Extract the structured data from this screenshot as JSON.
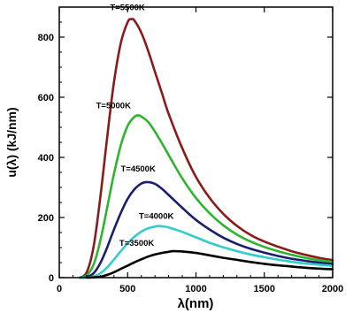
{
  "chart_data": {
    "type": "line",
    "title": "",
    "xlabel": "λ(nm)",
    "ylabel": "u(λ) (kJ/nm)",
    "xlim": [
      0,
      2000
    ],
    "ylim": [
      0,
      900
    ],
    "x_ticks": [
      0,
      500,
      1000,
      1500,
      2000
    ],
    "y_ticks": [
      0,
      200,
      400,
      600,
      800
    ],
    "x_tick_labels": [
      "0",
      "500",
      "1000",
      "1500",
      "2000"
    ],
    "y_tick_labels": [
      "0",
      "200",
      "400",
      "600",
      "800"
    ],
    "grid": false,
    "legend": "none",
    "series": [
      {
        "name": "T=5500K",
        "temperature_k": 5500,
        "peak": [
          527,
          860
        ],
        "color": "#8b1a1a",
        "x": [
          150,
          200,
          250,
          300,
          350,
          400,
          450,
          500,
          527,
          550,
          600,
          650,
          700,
          750,
          800,
          900,
          1000,
          1100,
          1200,
          1300,
          1400,
          1500,
          1600,
          1700,
          1800,
          1900,
          2000
        ],
        "values": [
          0,
          17,
          100,
          265,
          465,
          650,
          780,
          850,
          860,
          855,
          815,
          755,
          685,
          615,
          545,
          430,
          335,
          265,
          212,
          172,
          142,
          120,
          103,
          88,
          76,
          66,
          58
        ]
      },
      {
        "name": "T=5000K",
        "temperature_k": 5000,
        "peak": [
          580,
          540
        ],
        "color": "#2db52d",
        "x": [
          150,
          200,
          250,
          300,
          350,
          400,
          450,
          500,
          550,
          580,
          600,
          650,
          700,
          750,
          800,
          900,
          1000,
          1100,
          1200,
          1300,
          1400,
          1500,
          1600,
          1700,
          1800,
          1900,
          2000
        ],
        "values": [
          0,
          7,
          42,
          122,
          232,
          345,
          440,
          505,
          535,
          540,
          536,
          518,
          486,
          448,
          408,
          330,
          265,
          214,
          174,
          143,
          120,
          102,
          88,
          76,
          66,
          58,
          52
        ]
      },
      {
        "name": "T=4500K",
        "temperature_k": 4500,
        "peak": [
          644,
          318
        ],
        "color": "#1a1f6b",
        "x": [
          150,
          200,
          250,
          300,
          350,
          400,
          450,
          500,
          550,
          600,
          644,
          700,
          750,
          800,
          900,
          1000,
          1100,
          1200,
          1300,
          1400,
          1500,
          1600,
          1700,
          1800,
          1900,
          2000
        ],
        "values": [
          0,
          2,
          14,
          48,
          100,
          160,
          215,
          262,
          294,
          313,
          318,
          312,
          296,
          275,
          232,
          192,
          160,
          133,
          112,
          96,
          83,
          72,
          63,
          56,
          50,
          45
        ]
      },
      {
        "name": "T=4000K",
        "temperature_k": 4000,
        "peak": [
          725,
          172
        ],
        "color": "#33cccc",
        "x": [
          150,
          200,
          250,
          300,
          350,
          400,
          450,
          500,
          550,
          600,
          650,
          700,
          725,
          750,
          800,
          900,
          1000,
          1100,
          1200,
          1300,
          1400,
          1500,
          1600,
          1700,
          1800,
          1900,
          2000
        ],
        "values": [
          0,
          0,
          4,
          14,
          34,
          60,
          88,
          114,
          136,
          153,
          164,
          170,
          172,
          171,
          167,
          152,
          134,
          116,
          101,
          88,
          77,
          68,
          60,
          53,
          47,
          43,
          39
        ]
      },
      {
        "name": "T=3500K",
        "temperature_k": 3500,
        "peak": [
          828,
          88
        ],
        "color": "#000000",
        "x": [
          200,
          250,
          300,
          350,
          400,
          450,
          500,
          550,
          600,
          650,
          700,
          750,
          800,
          828,
          850,
          900,
          1000,
          1100,
          1200,
          1300,
          1400,
          1500,
          1600,
          1700,
          1800,
          1900,
          2000
        ],
        "values": [
          0,
          1,
          3,
          9,
          18,
          29,
          40,
          51,
          61,
          70,
          77,
          82,
          86,
          88,
          88,
          87,
          82,
          74,
          66,
          59,
          52,
          46,
          41,
          37,
          33,
          30,
          28
        ]
      }
    ]
  }
}
